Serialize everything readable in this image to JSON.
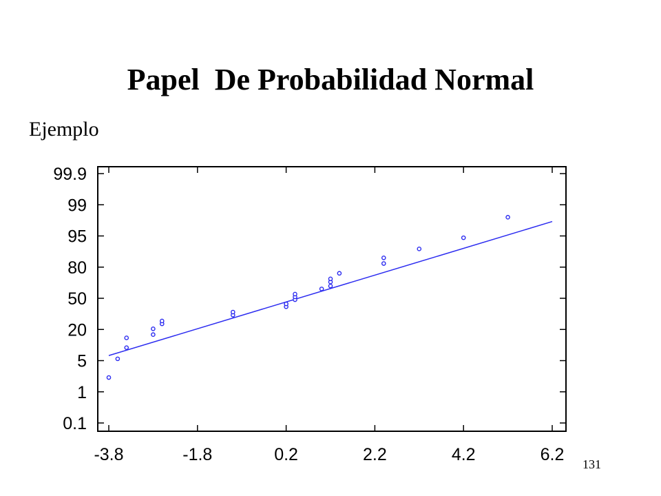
{
  "slide": {
    "title": "Papel  De Probabilidad Normal",
    "subtitle": "Ejemplo",
    "page_number": "131"
  },
  "chart_data": {
    "type": "scatter",
    "title": "",
    "xlabel": "",
    "ylabel": "",
    "x_scale": "linear",
    "y_scale": "normal-probability",
    "xlim": [
      -3.8,
      6.2
    ],
    "ylim_percent": [
      0.1,
      99.9
    ],
    "x_ticks": [
      -3.8,
      -1.8,
      0.2,
      2.2,
      4.2,
      6.2
    ],
    "x_tick_labels": [
      "-3.8",
      "-1.8",
      "0.2",
      "2.2",
      "4.2",
      "6.2"
    ],
    "y_ticks": [
      99.9,
      99,
      95,
      80,
      50,
      20,
      5,
      1,
      0.1
    ],
    "y_tick_labels": [
      "99.9",
      "99",
      "95",
      "80",
      "50",
      "20",
      "5",
      "1",
      "0.1"
    ],
    "grid": false,
    "series": [
      {
        "kind": "points",
        "marker": "open-circle",
        "color": "#2b2bf0",
        "points": [
          {
            "x": -3.8,
            "y": 2.2
          },
          {
            "x": -3.6,
            "y": 5.5
          },
          {
            "x": -3.4,
            "y": 9.5
          },
          {
            "x": -3.4,
            "y": 14.5
          },
          {
            "x": -2.8,
            "y": 16.5
          },
          {
            "x": -2.8,
            "y": 20.5
          },
          {
            "x": -2.6,
            "y": 24.5
          },
          {
            "x": -2.6,
            "y": 27.0
          },
          {
            "x": -1.0,
            "y": 32.5
          },
          {
            "x": -1.0,
            "y": 35.5
          },
          {
            "x": 0.2,
            "y": 41.0
          },
          {
            "x": 0.2,
            "y": 44.0
          },
          {
            "x": 0.4,
            "y": 48.5
          },
          {
            "x": 0.4,
            "y": 51.5
          },
          {
            "x": 0.4,
            "y": 54.5
          },
          {
            "x": 1.0,
            "y": 60.0
          },
          {
            "x": 1.2,
            "y": 63.0
          },
          {
            "x": 1.2,
            "y": 67.0
          },
          {
            "x": 1.2,
            "y": 70.0
          },
          {
            "x": 1.4,
            "y": 75.0
          },
          {
            "x": 2.4,
            "y": 82.5
          },
          {
            "x": 2.4,
            "y": 86.0
          },
          {
            "x": 3.2,
            "y": 90.5
          },
          {
            "x": 4.2,
            "y": 94.5
          },
          {
            "x": 5.2,
            "y": 98.0
          }
        ]
      },
      {
        "kind": "fit-line",
        "color": "#2b2bf0",
        "points": [
          {
            "x": -3.8,
            "y": 6.5
          },
          {
            "x": 6.2,
            "y": 97.5
          }
        ]
      }
    ]
  }
}
